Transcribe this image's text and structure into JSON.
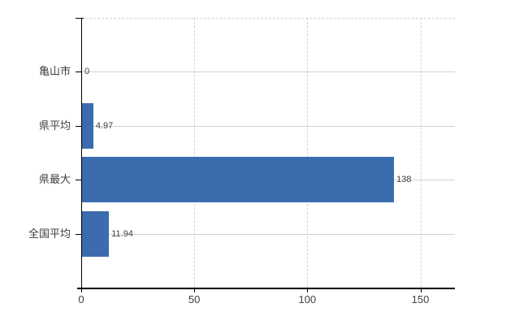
{
  "chart_data": {
    "type": "bar",
    "orientation": "horizontal",
    "title": "",
    "xlabel": "",
    "ylabel": "",
    "categories": [
      "亀山市",
      "県平均",
      "県最大",
      "全国平均"
    ],
    "values": [
      0,
      4.97,
      138,
      11.94
    ],
    "value_labels": [
      "0",
      "4.97",
      "138",
      "11.94"
    ],
    "x_ticks": [
      0,
      50,
      100,
      150
    ],
    "x_tick_labels": [
      "0",
      "50",
      "100",
      "150"
    ],
    "xlim": [
      0,
      165.4
    ],
    "grid": true,
    "legend": false,
    "gridline_style": {
      "horizontal": "solid",
      "vertical": "dashed",
      "plot_top": "dashed"
    },
    "colors": {
      "bar": "#3a6cae",
      "h_gridline": "#cfd4cd",
      "v_gridline": "#d6d1d6",
      "plot_top_border": "#d6d1d6",
      "axis": "#000000",
      "text": "#404040",
      "background": "#ffffff"
    }
  }
}
